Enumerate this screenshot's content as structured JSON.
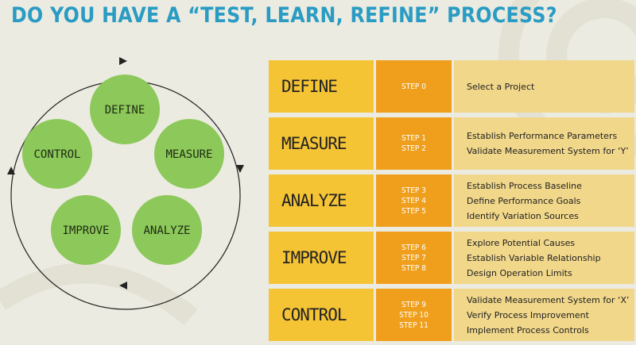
{
  "title": "DO YOU HAVE A “TEST, LEARN, REFINE” PROCESS?",
  "cycle": {
    "nodes": [
      "DEFINE",
      "MEASURE",
      "ANALYZE",
      "IMPROVE",
      "CONTROL"
    ]
  },
  "phases": [
    {
      "name": "DEFINE",
      "steps": [
        "STEP 0"
      ],
      "items": [
        "Select a Project"
      ]
    },
    {
      "name": "MEASURE",
      "steps": [
        "STEP 1",
        "STEP 2"
      ],
      "items": [
        "Establish Performance Parameters",
        "Validate Measurement System for ‘Y’"
      ]
    },
    {
      "name": "ANALYZE",
      "steps": [
        "STEP 3",
        "STEP 4",
        "STEP 5"
      ],
      "items": [
        "Establish Process Baseline",
        "Define Performance Goals",
        "Identify Variation Sources"
      ]
    },
    {
      "name": "IMPROVE",
      "steps": [
        "STEP 6",
        "STEP 7",
        "STEP 8"
      ],
      "items": [
        "Explore Potential Causes",
        "Establish Variable Relationship",
        "Design Operation Limits"
      ]
    },
    {
      "name": "CONTROL",
      "steps": [
        "STEP 9",
        "STEP 10",
        "STEP 11"
      ],
      "items": [
        "Validate Measurement System for ‘X’",
        "Verify Process Improvement",
        "Implement Process Controls"
      ]
    }
  ],
  "colors": {
    "title": "#2a9cc4",
    "node_fill": "#8cc85a",
    "phase_name_bg": "#f5c435",
    "step_bg": "#ef9f1b",
    "desc_bg": "#f1d78a"
  }
}
